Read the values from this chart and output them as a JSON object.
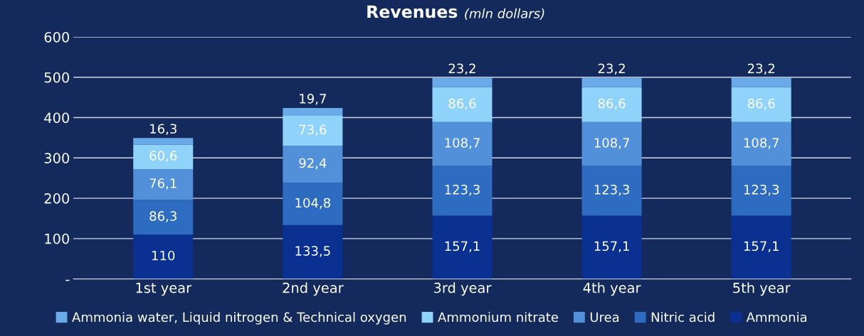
{
  "chart_data": {
    "type": "bar",
    "title": "Revenues",
    "subtitle": "(mln dollars)",
    "categories": [
      "1st year",
      "2nd year",
      "3rd year",
      "4th year",
      "5th year"
    ],
    "stacked": true,
    "series": [
      {
        "name": "Ammonia",
        "color": "#0a3192",
        "values": [
          110,
          133.5,
          157.1,
          157.1,
          157.1
        ],
        "value_labels": [
          "110",
          "133,5",
          "157,1",
          "157,1",
          "157,1"
        ]
      },
      {
        "name": "Nitric acid",
        "color": "#2e6cc2",
        "values": [
          86.3,
          104.8,
          123.3,
          123.3,
          123.3
        ],
        "value_labels": [
          "86,3",
          "104,8",
          "123,3",
          "123,3",
          "123,3"
        ]
      },
      {
        "name": "Urea",
        "color": "#5290da",
        "values": [
          76.1,
          92.4,
          108.7,
          108.7,
          108.7
        ],
        "value_labels": [
          "76,1",
          "92,4",
          "108,7",
          "108,7",
          "108,7"
        ]
      },
      {
        "name": "Ammonium nitrate",
        "color": "#8fd2fa",
        "values": [
          60.6,
          73.6,
          86.6,
          86.6,
          86.6
        ],
        "value_labels": [
          "60,6",
          "73,6",
          "86,6",
          "86,6",
          "86,6"
        ]
      },
      {
        "name": "Ammonia water, Liquid nitrogen & Technical oxygen",
        "color": "#6aaae8",
        "values": [
          16.3,
          19.7,
          23.2,
          23.2,
          23.2
        ],
        "value_labels": [
          "16,3",
          "19,7",
          "23,2",
          "23,2",
          "23,2"
        ]
      }
    ],
    "ylim": [
      0,
      600
    ],
    "yticks": [
      {
        "value": 0,
        "label": "-"
      },
      100,
      200,
      300,
      400,
      500,
      600
    ],
    "grid": "y",
    "legend": "bottom"
  }
}
